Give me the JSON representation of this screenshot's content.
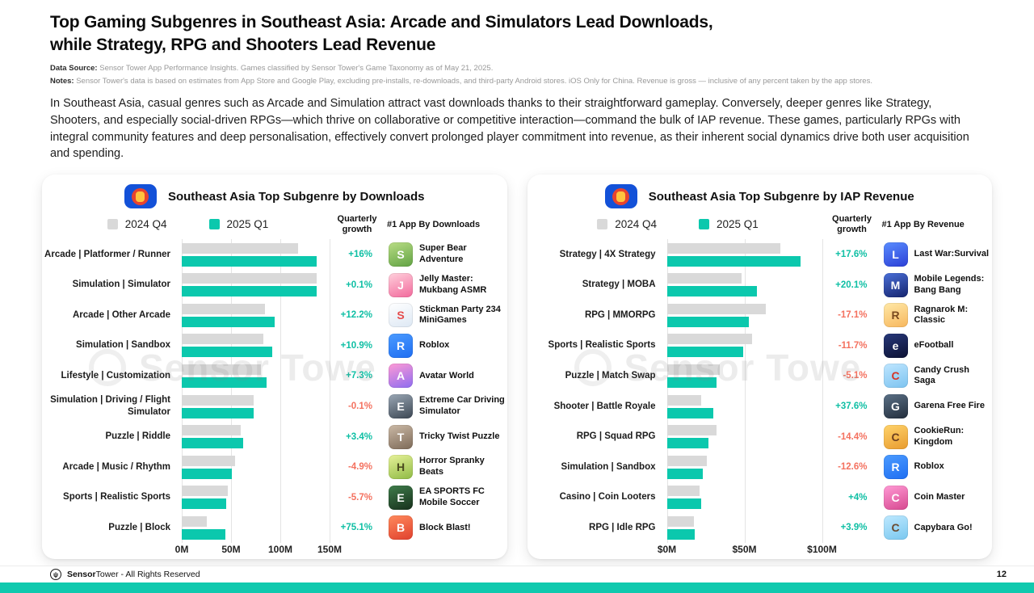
{
  "page": {
    "title_line1": "Top Gaming Subgenres in Southeast Asia: Arcade and Simulators Lead Downloads,",
    "title_line2": "while Strategy, RPG and Shooters Lead Revenue",
    "data_source_label": "Data Source:",
    "data_source_text": "Sensor Tower App Performance Insights. Games classified by Sensor Tower's Game Taxonomy as of May 21, 2025.",
    "notes_label": "Notes:",
    "notes_text": "Sensor Tower's data is based on estimates from App Store and Google Play, excluding pre-installs, re-downloads, and third-party Android stores. iOS Only for China.  Revenue is gross — inclusive of any percent taken by the app stores.",
    "intro": "In Southeast Asia, casual genres such as Arcade and Simulation attract vast downloads thanks to their straightforward gameplay. Conversely, deeper genres like Strategy, Shooters, and especially social-driven RPGs—which thrive on collaborative or competitive interaction—command the bulk of IAP revenue. These games, particularly RPGs with integral community features and deep personalisation, effectively convert prolonged player commitment into revenue, as their inherent social dynamics drive both user acquisition and spending.",
    "watermark": "Sensor Towe",
    "footer_brand_bold": "Sensor",
    "footer_brand_rest": "Tower",
    "footer_suffix": " - All Rights Reserved",
    "page_number": "12"
  },
  "colors": {
    "teal_bar": "#0bc8ad",
    "gray_bar": "#d9d9d9",
    "positive_growth": "#0ebfa4",
    "negative_growth": "#f4715f",
    "bottom_strip": "#10c9ae",
    "asean_blue": "#1351d8",
    "asean_red": "#e8432e",
    "asean_yellow": "#ffc43e"
  },
  "chart_data": [
    {
      "type": "bar",
      "orientation": "horizontal",
      "title": "Southeast Asia Top Subgenre by Downloads",
      "legend": [
        "2024 Q4",
        "2025 Q1"
      ],
      "growth_header": "Quarterly growth",
      "app_header": "#1 App By Downloads",
      "unit": "downloads (millions)",
      "x_axis": {
        "ticks": [
          "0M",
          "50M",
          "100M",
          "150M"
        ],
        "range_millions": [
          0,
          150
        ],
        "grid": true
      },
      "rows": [
        {
          "label": "Arcade | Platformer / Runner",
          "q4_2024": 118,
          "q1_2025": 137,
          "growth": "+16%",
          "app": "Super Bear Adventure",
          "icon": {
            "name": "super-bear-adventure-app-icon",
            "bg": "linear-gradient(160deg,#b9dd85,#61a243)",
            "fg": "#ffffff",
            "glyph": "S"
          }
        },
        {
          "label": "Simulation | Simulator",
          "q4_2024": 137,
          "q1_2025": 137,
          "growth": "+0.1%",
          "app": "Jelly Master: Mukbang ASMR",
          "icon": {
            "name": "jelly-master-app-icon",
            "bg": "linear-gradient(160deg,#ffd1dc,#f2699c)",
            "fg": "#ffffff",
            "glyph": "J"
          }
        },
        {
          "label": "Arcade | Other Arcade",
          "q4_2024": 84,
          "q1_2025": 94,
          "growth": "+12.2%",
          "app": "Stickman Party 234 MiniGames",
          "icon": {
            "name": "stickman-party-app-icon",
            "bg": "linear-gradient(160deg,#ffffff,#dde8f4)",
            "fg": "#e54b4b",
            "glyph": "S"
          }
        },
        {
          "label": "Simulation | Sandbox",
          "q4_2024": 83,
          "q1_2025": 92,
          "growth": "+10.9%",
          "app": "Roblox",
          "icon": {
            "name": "roblox-app-icon",
            "bg": "linear-gradient(160deg,#4b9bff,#1f6ef2)",
            "fg": "#ffffff",
            "glyph": "R"
          }
        },
        {
          "label": "Lifestyle | Customization",
          "q4_2024": 80,
          "q1_2025": 86,
          "growth": "+7.3%",
          "app": "Avatar World",
          "icon": {
            "name": "avatar-world-app-icon",
            "bg": "linear-gradient(160deg,#ff9ad5,#8e6cf0)",
            "fg": "#ffffff",
            "glyph": "A"
          }
        },
        {
          "label": "Simulation | Driving / Flight Simulator",
          "q4_2024": 73,
          "q1_2025": 73,
          "growth": "-0.1%",
          "app": "Extreme Car Driving Simulator",
          "icon": {
            "name": "extreme-car-driving-app-icon",
            "bg": "linear-gradient(160deg,#9aa7b5,#3c4753)",
            "fg": "#ffffff",
            "glyph": "E"
          }
        },
        {
          "label": "Puzzle | Riddle",
          "q4_2024": 60,
          "q1_2025": 62,
          "growth": "+3.4%",
          "app": "Tricky Twist Puzzle",
          "icon": {
            "name": "tricky-twist-puzzle-app-icon",
            "bg": "linear-gradient(160deg,#cbb9a6,#7d6a58)",
            "fg": "#ffffff",
            "glyph": "T"
          }
        },
        {
          "label": "Arcade | Music / Rhythm",
          "q4_2024": 54,
          "q1_2025": 51,
          "growth": "-4.9%",
          "app": "Horror Spranky Beats",
          "icon": {
            "name": "horror-spranky-beats-app-icon",
            "bg": "linear-gradient(160deg,#e7f29a,#8fba44)",
            "fg": "#4b4b1f",
            "glyph": "H"
          }
        },
        {
          "label": "Sports | Realistic Sports",
          "q4_2024": 47,
          "q1_2025": 45,
          "growth": "-5.7%",
          "app": "EA SPORTS FC Mobile Soccer",
          "icon": {
            "name": "ea-sports-fc-mobile-app-icon",
            "bg": "linear-gradient(160deg,#3f7d4b,#17301c)",
            "fg": "#ffffff",
            "glyph": "E"
          }
        },
        {
          "label": "Puzzle | Block",
          "q4_2024": 25,
          "q1_2025": 44,
          "growth": "+75.1%",
          "app": "Block Blast!",
          "icon": {
            "name": "block-blast-app-icon",
            "bg": "linear-gradient(160deg,#ff8a5c,#e0402e)",
            "fg": "#ffffff",
            "glyph": "B"
          }
        }
      ]
    },
    {
      "type": "bar",
      "orientation": "horizontal",
      "title": "Southeast Asia Top Subgenre by IAP Revenue",
      "legend": [
        "2024 Q4",
        "2025 Q1"
      ],
      "growth_header": "Quarterly growth",
      "app_header": "#1 App By Revenue",
      "unit": "gross IAP revenue (USD millions)",
      "x_axis": {
        "ticks": [
          "$0M",
          "$50M",
          "$100M"
        ],
        "range_millions": [
          0,
          100
        ],
        "grid": true
      },
      "rows": [
        {
          "label": "Strategy | 4X Strategy",
          "q4_2024": 73,
          "q1_2025": 86,
          "growth": "+17.6%",
          "app": "Last War:Survival",
          "icon": {
            "name": "last-war-survival-app-icon",
            "bg": "linear-gradient(160deg,#5a8dff,#2b3fd6)",
            "fg": "#ffffff",
            "glyph": "L"
          }
        },
        {
          "label": "Strategy | MOBA",
          "q4_2024": 48,
          "q1_2025": 58,
          "growth": "+20.1%",
          "app": "Mobile Legends: Bang Bang",
          "icon": {
            "name": "mobile-legends-app-icon",
            "bg": "linear-gradient(160deg,#4a6fd8,#15246e)",
            "fg": "#ffffff",
            "glyph": "M"
          }
        },
        {
          "label": "RPG | MMORPG",
          "q4_2024": 64,
          "q1_2025": 53,
          "growth": "-17.1%",
          "app": "Ragnarok M: Classic",
          "icon": {
            "name": "ragnarok-m-classic-app-icon",
            "bg": "linear-gradient(160deg,#ffe9a8,#f7b65c)",
            "fg": "#7a4a1f",
            "glyph": "R"
          }
        },
        {
          "label": "Sports | Realistic Sports",
          "q4_2024": 55,
          "q1_2025": 49,
          "growth": "-11.7%",
          "app": "eFootball",
          "icon": {
            "name": "efootball-app-icon",
            "bg": "linear-gradient(160deg,#27387a,#0c1133)",
            "fg": "#ffffff",
            "glyph": "e"
          }
        },
        {
          "label": "Puzzle | Match Swap",
          "q4_2024": 34,
          "q1_2025": 32,
          "growth": "-5.1%",
          "app": "Candy Crush Saga",
          "icon": {
            "name": "candy-crush-saga-app-icon",
            "bg": "linear-gradient(160deg,#bfe6ff,#7cc3f0)",
            "fg": "#d63426",
            "glyph": "C"
          }
        },
        {
          "label": "Shooter | Battle Royale",
          "q4_2024": 22,
          "q1_2025": 30,
          "growth": "+37.6%",
          "app": "Garena Free Fire",
          "icon": {
            "name": "garena-free-fire-app-icon",
            "bg": "linear-gradient(160deg,#5a7086,#232e3c)",
            "fg": "#ffffff",
            "glyph": "G"
          }
        },
        {
          "label": "RPG | Squad RPG",
          "q4_2024": 32,
          "q1_2025": 27,
          "growth": "-14.4%",
          "app": "CookieRun: Kingdom",
          "icon": {
            "name": "cookierun-kingdom-app-icon",
            "bg": "linear-gradient(160deg,#ffd36b,#e89b2e)",
            "fg": "#6b3d1e",
            "glyph": "C"
          }
        },
        {
          "label": "Simulation | Sandbox",
          "q4_2024": 26,
          "q1_2025": 23,
          "growth": "-12.6%",
          "app": "Roblox",
          "icon": {
            "name": "roblox-app-icon",
            "bg": "linear-gradient(160deg,#4b9bff,#1f6ef2)",
            "fg": "#ffffff",
            "glyph": "R"
          }
        },
        {
          "label": "Casino | Coin Looters",
          "q4_2024": 21,
          "q1_2025": 22,
          "growth": "+4%",
          "app": "Coin Master",
          "icon": {
            "name": "coin-master-app-icon",
            "bg": "linear-gradient(160deg,#ff9ad5,#d6488f)",
            "fg": "#ffffff",
            "glyph": "C"
          }
        },
        {
          "label": "RPG | Idle RPG",
          "q4_2024": 17.5,
          "q1_2025": 18,
          "growth": "+3.9%",
          "app": "Capybara Go!",
          "icon": {
            "name": "capybara-go-app-icon",
            "bg": "linear-gradient(160deg,#bfe9ff,#79c7ef)",
            "fg": "#6b4a2f",
            "glyph": "C"
          }
        }
      ]
    }
  ]
}
